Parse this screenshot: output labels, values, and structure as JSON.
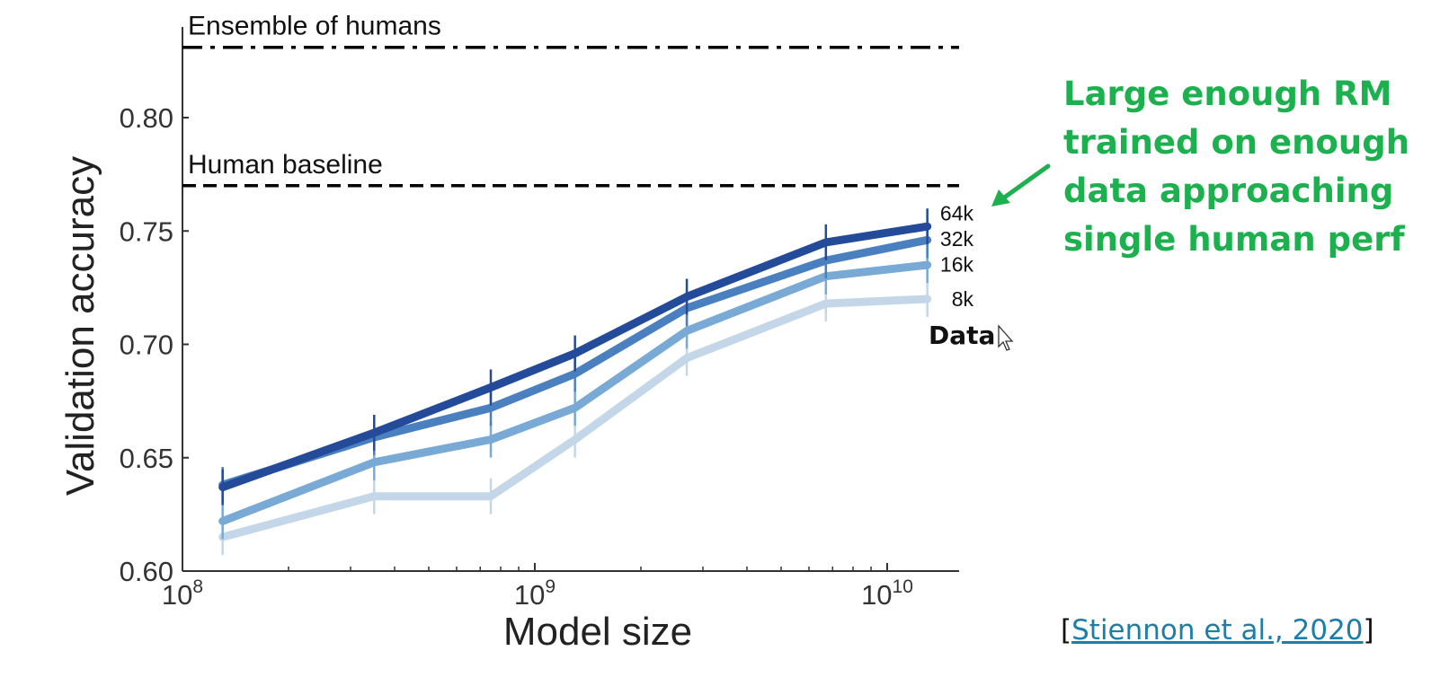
{
  "chart_data": {
    "type": "line",
    "xlabel": "Model size",
    "ylabel": "Validation accuracy",
    "x_scale": "log",
    "xlim": [
      100000000,
      16000000000
    ],
    "ylim": [
      0.6,
      0.84
    ],
    "x_ticks": [
      {
        "value": 100000000,
        "base": "10",
        "exp": "8"
      },
      {
        "value": 1000000000,
        "base": "10",
        "exp": "9"
      },
      {
        "value": 10000000000,
        "base": "10",
        "exp": "10"
      }
    ],
    "y_ticks": [
      {
        "value": 0.6,
        "label": "0.60"
      },
      {
        "value": 0.65,
        "label": "0.65"
      },
      {
        "value": 0.7,
        "label": "0.70"
      },
      {
        "value": 0.75,
        "label": "0.75"
      },
      {
        "value": 0.8,
        "label": "0.80"
      }
    ],
    "reference_lines": [
      {
        "label": "Ensemble of humans",
        "y": 0.831,
        "style": "dashdot"
      },
      {
        "label": "Human baseline",
        "y": 0.77,
        "style": "dashed"
      }
    ],
    "legend_title": "Data",
    "x": [
      130000000,
      350000000,
      750000000,
      1300000000,
      2700000000,
      6700000000,
      13000000000
    ],
    "series": [
      {
        "name": "8k",
        "color": "#c4d7e9",
        "values": [
          0.615,
          0.633,
          0.633,
          0.658,
          0.694,
          0.718,
          0.72
        ]
      },
      {
        "name": "16k",
        "color": "#79aad5",
        "values": [
          0.622,
          0.648,
          0.658,
          0.672,
          0.706,
          0.73,
          0.735
        ]
      },
      {
        "name": "32k",
        "color": "#4a80c0",
        "values": [
          0.638,
          0.659,
          0.672,
          0.687,
          0.716,
          0.737,
          0.746
        ]
      },
      {
        "name": "64k",
        "color": "#244b99",
        "values": [
          0.637,
          0.661,
          0.681,
          0.696,
          0.721,
          0.745,
          0.752
        ]
      }
    ]
  },
  "annotation": {
    "lines": [
      "Large enough RM",
      "trained on enough",
      "data approaching",
      "single human perf"
    ],
    "color": "#1db04f"
  },
  "citation": {
    "open": "[",
    "text": "Stiennon et al., 2020",
    "close": "]"
  }
}
